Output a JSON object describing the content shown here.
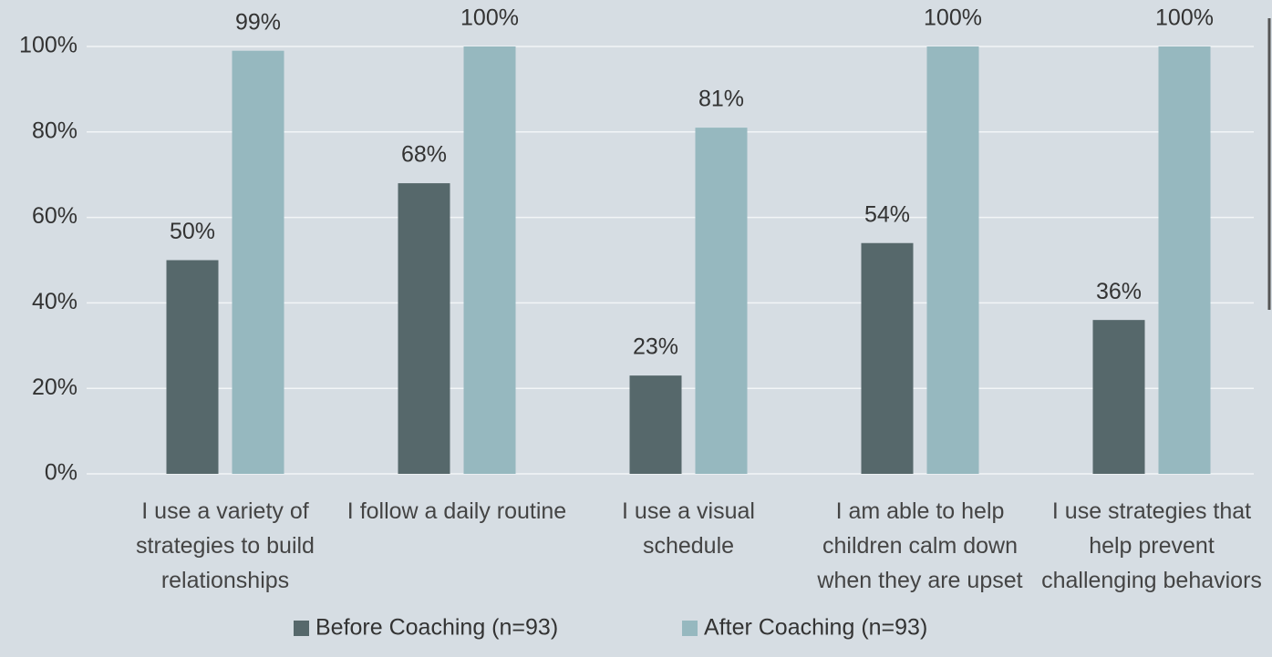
{
  "chart_data": {
    "type": "bar",
    "categories": [
      "I use a variety of strategies to build relationships",
      "I follow a daily routine",
      "I use a visual schedule",
      "I am able to help children calm down when they are upset",
      "I use strategies that help prevent challenging behaviors"
    ],
    "series": [
      {
        "name": "Before Coaching (n=93)",
        "color": "#56686b",
        "values": [
          50,
          68,
          23,
          54,
          36
        ],
        "value_labels": [
          "50%",
          "68%",
          "23%",
          "54%",
          "36%"
        ]
      },
      {
        "name": "After Coaching (n=93)",
        "color": "#96b8bf",
        "values": [
          99,
          100,
          81,
          100,
          100
        ],
        "value_labels": [
          "99%",
          "100%",
          "81%",
          "100%",
          "100%"
        ]
      }
    ],
    "ylim": [
      0,
      100
    ],
    "yticks": [
      {
        "value": 0,
        "label": "0%"
      },
      {
        "value": 20,
        "label": "20%"
      },
      {
        "value": 40,
        "label": "40%"
      },
      {
        "value": 60,
        "label": "60%"
      },
      {
        "value": 80,
        "label": "80%"
      },
      {
        "value": 100,
        "label": "100%"
      }
    ],
    "grid": true,
    "legend": "bottom"
  }
}
